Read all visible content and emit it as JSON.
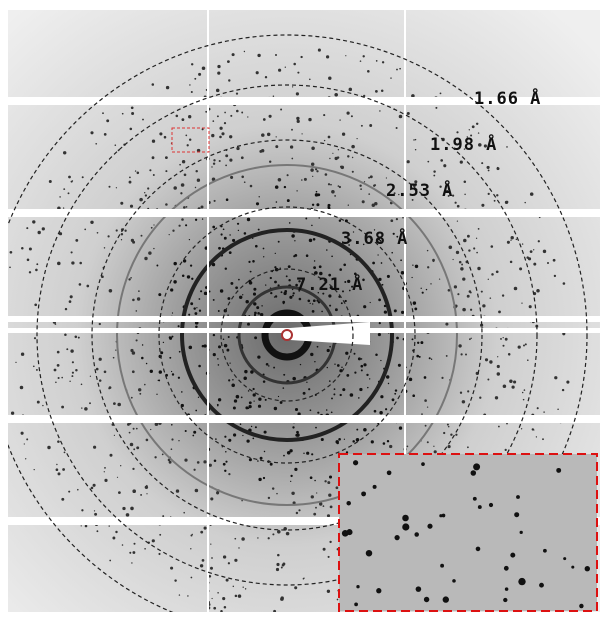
{
  "ring_labels": [
    "1.66 Å",
    "1.98 Å",
    "2.53 Å",
    "3.68 Å",
    "7.21 Å"
  ]
}
